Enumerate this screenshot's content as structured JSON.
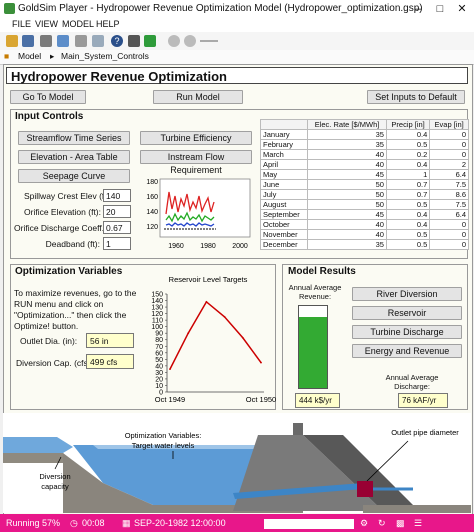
{
  "window": {
    "title": "GoldSim Player - Hydropower Revenue Optimization Model (Hydropower_optimization.gsp)"
  },
  "menu": [
    "FILE",
    "VIEW",
    "MODEL",
    "HELP"
  ],
  "breadcrumb": {
    "root": "Model",
    "current": "Main_System_Controls"
  },
  "app_title": "Hydropower Revenue Optimization",
  "top_buttons": {
    "go_to_model": "Go To Model",
    "run_model": "Run Model",
    "set_inputs_default": "Set Inputs to Default"
  },
  "input_controls": {
    "title": "Input Controls",
    "buttons": {
      "streamflow": "Streamflow Time Series",
      "turbine": "Turbine Efficiency",
      "elevation_area": "Elevation - Area Table",
      "instream_flow": "Instream Flow Requirement",
      "seepage": "Seepage Curve"
    },
    "fields": [
      {
        "label": "Spillway Crest Elev (ft):",
        "value": "140"
      },
      {
        "label": "Orifice Elevation (ft):",
        "value": "20"
      },
      {
        "label": "Orifice Discharge Coeff.:",
        "value": "0.67"
      },
      {
        "label": "Deadband (ft):",
        "value": "1"
      }
    ],
    "mini_chart": {
      "yticks": [
        "180",
        "160",
        "140",
        "120"
      ],
      "xticks": [
        "1960",
        "1980",
        "2000"
      ]
    },
    "table": {
      "headers": [
        "",
        "Elec. Rate [$/MWh]",
        "Precip [in]",
        "Evap [in]"
      ],
      "rows": [
        [
          "January",
          "35",
          "0.4",
          "0"
        ],
        [
          "February",
          "35",
          "0.5",
          "0"
        ],
        [
          "March",
          "40",
          "0.2",
          "0"
        ],
        [
          "April",
          "40",
          "0.4",
          "2"
        ],
        [
          "May",
          "45",
          "1",
          "6.4"
        ],
        [
          "June",
          "50",
          "0.7",
          "7.5"
        ],
        [
          "July",
          "50",
          "0.7",
          "8.6"
        ],
        [
          "August",
          "50",
          "0.5",
          "7.5"
        ],
        [
          "September",
          "45",
          "0.4",
          "6.4"
        ],
        [
          "October",
          "40",
          "0.4",
          "0"
        ],
        [
          "November",
          "40",
          "0.5",
          "0"
        ],
        [
          "December",
          "35",
          "0.5",
          "0"
        ]
      ]
    }
  },
  "optimization": {
    "title": "Optimization Variables",
    "instructions": [
      "To maximize revenues, go to the",
      "RUN menu and click on",
      "\"Optimization...\" then click the",
      "Optimize! button."
    ],
    "outlet_label": "Outlet Dia. (in):",
    "outlet_value": "56 in",
    "diversion_label": "Diversion Cap. (cfs):",
    "diversion_value": "499 cfs"
  },
  "chart_data": {
    "type": "line",
    "title": "Reservoir Level Targets",
    "x": [
      "Oct 1949",
      "",
      "",
      "",
      "",
      "Oct 1950"
    ],
    "values": [
      35,
      90,
      138,
      115,
      83,
      45
    ],
    "ylim": [
      0,
      150
    ],
    "yticks": [
      "150",
      "140",
      "130",
      "120",
      "110",
      "100",
      "90",
      "80",
      "70",
      "60",
      "50",
      "40",
      "30",
      "20",
      "10",
      "0"
    ],
    "xticklabels": [
      "Oct 1949",
      "Oct 1950"
    ],
    "line_color": "#cc0000"
  },
  "model_results": {
    "title": "Model Results",
    "revenue_label": [
      "Annual Average",
      "Revenue:"
    ],
    "revenue_value": "444 k$/yr",
    "revenue_fill_fraction": 0.86,
    "fill_color": "#33aa33",
    "buttons": {
      "river_diversion": "River Diversion",
      "reservoir": "Reservoir",
      "turbine_discharge": "Turbine Discharge",
      "energy_revenue": "Energy and Revenue"
    },
    "discharge_label": [
      "Annual Average",
      "Discharge:"
    ],
    "discharge_value": "76 kAF/yr"
  },
  "diagram": {
    "opt_label": [
      "Optimization Variables:",
      "Target water levels"
    ],
    "outlet_label": "Outlet pipe diameter",
    "diversion_label": [
      "Diversion",
      "capacity"
    ]
  },
  "status": {
    "running": "Running 57%",
    "elapsed": "00:08",
    "date": "SEP-20-1982 12:00:00"
  }
}
